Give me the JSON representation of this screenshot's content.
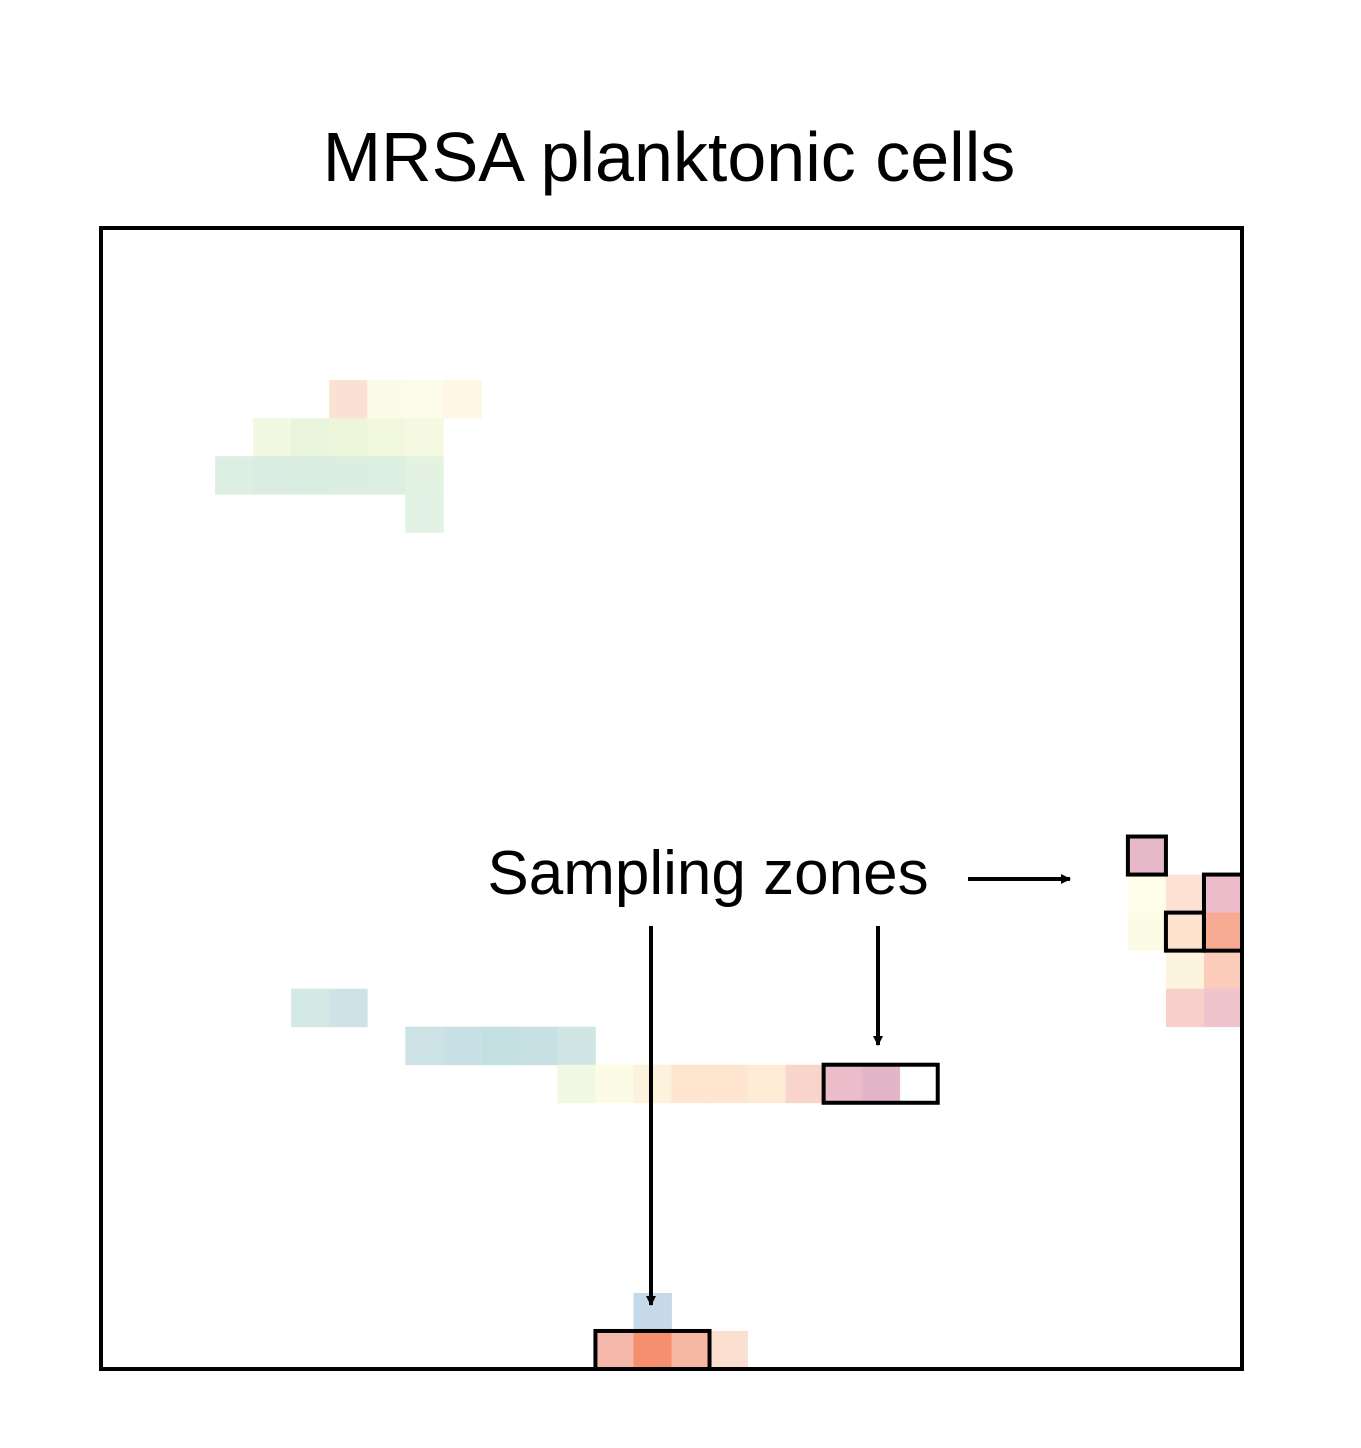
{
  "chart_data": {
    "type": "heatmap",
    "title": "MRSA planktonic cells",
    "xlabel": "",
    "ylabel": "",
    "grid": false,
    "n_cols": 30,
    "n_rows": 30,
    "cells": [
      {
        "col": 6,
        "row": 4,
        "color": "#fbe1d3"
      },
      {
        "col": 7,
        "row": 4,
        "color": "#fbfbe9"
      },
      {
        "col": 8,
        "row": 4,
        "color": "#fdfbe9"
      },
      {
        "col": 9,
        "row": 4,
        "color": "#fdf7e4"
      },
      {
        "col": 4,
        "row": 5,
        "color": "#f3f8e2"
      },
      {
        "col": 5,
        "row": 5,
        "color": "#e9f4dd"
      },
      {
        "col": 6,
        "row": 5,
        "color": "#edf6da"
      },
      {
        "col": 7,
        "row": 5,
        "color": "#f1f8dd"
      },
      {
        "col": 8,
        "row": 5,
        "color": "#f5f9e2"
      },
      {
        "col": 3,
        "row": 6,
        "color": "#dcefe2"
      },
      {
        "col": 4,
        "row": 6,
        "color": "#dbede2"
      },
      {
        "col": 5,
        "row": 6,
        "color": "#d9ede0"
      },
      {
        "col": 6,
        "row": 6,
        "color": "#dbeedf"
      },
      {
        "col": 7,
        "row": 6,
        "color": "#ddefe0"
      },
      {
        "col": 8,
        "row": 6,
        "color": "#e4f2e1"
      },
      {
        "col": 8,
        "row": 7,
        "color": "#e2f2e5"
      },
      {
        "col": 27,
        "row": 16,
        "color": "#e6b9c8"
      },
      {
        "col": 27,
        "row": 17,
        "color": "#fdfdea"
      },
      {
        "col": 28,
        "row": 17,
        "color": "#fde2d3"
      },
      {
        "col": 29,
        "row": 17,
        "color": "#ecbccb"
      },
      {
        "col": 27,
        "row": 18,
        "color": "#fbfbe6"
      },
      {
        "col": 28,
        "row": 18,
        "color": "#fde3cd"
      },
      {
        "col": 29,
        "row": 18,
        "color": "#f7ab93"
      },
      {
        "col": 28,
        "row": 19,
        "color": "#fdf4df"
      },
      {
        "col": 29,
        "row": 19,
        "color": "#fbccb9"
      },
      {
        "col": 28,
        "row": 20,
        "color": "#f8cfcb"
      },
      {
        "col": 29,
        "row": 20,
        "color": "#efc4cc"
      },
      {
        "col": 5,
        "row": 20,
        "color": "#d3e9e4"
      },
      {
        "col": 6,
        "row": 20,
        "color": "#cde3e6"
      },
      {
        "col": 8,
        "row": 21,
        "color": "#cde3e6"
      },
      {
        "col": 9,
        "row": 21,
        "color": "#c8e1e6"
      },
      {
        "col": 10,
        "row": 21,
        "color": "#c3dfe2"
      },
      {
        "col": 11,
        "row": 21,
        "color": "#c8e1e4"
      },
      {
        "col": 12,
        "row": 21,
        "color": "#cfe6e4"
      },
      {
        "col": 12,
        "row": 22,
        "color": "#f1f8e3"
      },
      {
        "col": 13,
        "row": 22,
        "color": "#fbfbe6"
      },
      {
        "col": 14,
        "row": 22,
        "color": "#fdf2dc"
      },
      {
        "col": 15,
        "row": 22,
        "color": "#fde5cf"
      },
      {
        "col": 16,
        "row": 22,
        "color": "#fde5cf"
      },
      {
        "col": 17,
        "row": 22,
        "color": "#fdebd6"
      },
      {
        "col": 18,
        "row": 22,
        "color": "#f9d4cb"
      },
      {
        "col": 19,
        "row": 22,
        "color": "#ebbcca"
      },
      {
        "col": 20,
        "row": 22,
        "color": "#e2b5c9"
      },
      {
        "col": 14,
        "row": 28,
        "color": "#c5d9e8"
      },
      {
        "col": 13,
        "row": 29,
        "color": "#f4b9ab"
      },
      {
        "col": 14,
        "row": 29,
        "color": "#f58f6e"
      },
      {
        "col": 15,
        "row": 29,
        "color": "#f6b8a2"
      },
      {
        "col": 16,
        "row": 29,
        "color": "#fbe0d2"
      }
    ],
    "highlight_boxes": [
      {
        "col": 27,
        "row": 16,
        "cols": 1,
        "rows": 1
      },
      {
        "col": 29,
        "row": 17,
        "cols": 1,
        "rows": 2
      },
      {
        "col": 28,
        "row": 18,
        "cols": 1,
        "rows": 1
      },
      {
        "col": 19,
        "row": 22,
        "cols": 3,
        "rows": 1
      },
      {
        "col": 13,
        "row": 29,
        "cols": 3,
        "rows": 1
      }
    ],
    "annotation": {
      "text": "Sampling zones"
    }
  }
}
